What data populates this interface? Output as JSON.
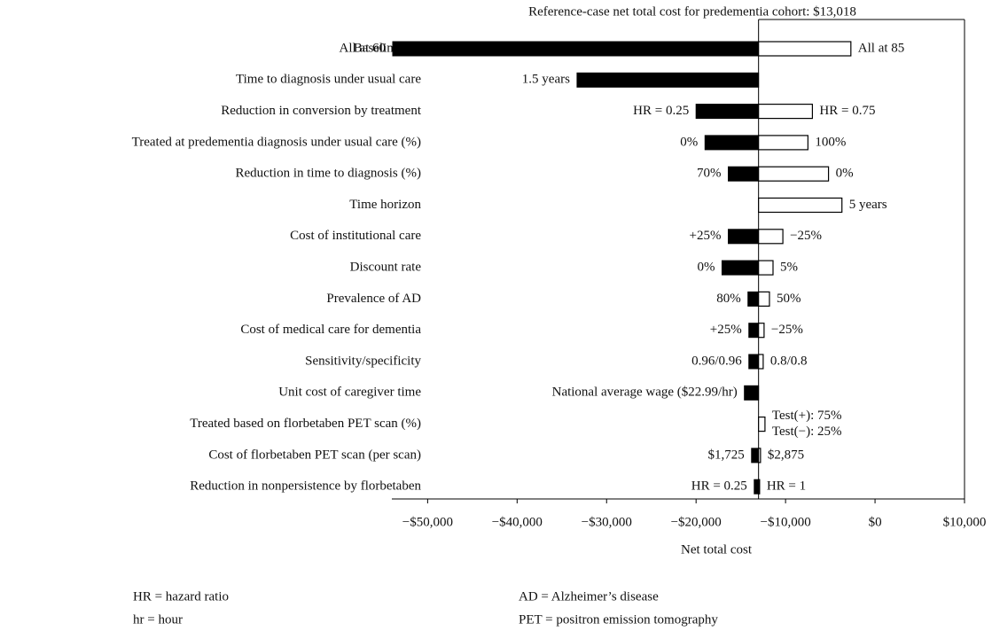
{
  "chart_data": {
    "type": "tornado",
    "title": "Reference-case net total cost for predementia cohort: $13,018",
    "reference": -13018,
    "x_label": "Net total cost",
    "xlim": [
      -54000,
      10000
    ],
    "xticks": [
      {
        "value": -50000,
        "label": "−$50,000"
      },
      {
        "value": -40000,
        "label": "−$40,000"
      },
      {
        "value": -30000,
        "label": "−$30,000"
      },
      {
        "value": -20000,
        "label": "−$20,000"
      },
      {
        "value": -10000,
        "label": "−$10,000"
      },
      {
        "value": 0,
        "label": "$0"
      },
      {
        "value": 10000,
        "label": "$10,000"
      }
    ],
    "low_color": "#000000",
    "high_color": "#ffffff",
    "parameters": [
      {
        "name": "Baseline age",
        "low": -53900,
        "high": -2700,
        "low_label": "All at 60",
        "high_label": "All at 85"
      },
      {
        "name": "Time to diagnosis under usual care",
        "low": -33300,
        "high": null,
        "low_label": "1.5 years",
        "high_label": null
      },
      {
        "name": "Reduction in conversion by treatment",
        "low": -20000,
        "high": -7000,
        "low_label": "HR = 0.25",
        "high_label": "HR = 0.75"
      },
      {
        "name": "Treated at predementia diagnosis under usual care (%)",
        "low": -19000,
        "high": -7500,
        "low_label": "0%",
        "high_label": "100%"
      },
      {
        "name": "Reduction in time to diagnosis (%)",
        "low": -16400,
        "high": -5200,
        "low_label": "70%",
        "high_label": "0%"
      },
      {
        "name": "Time horizon",
        "low": null,
        "high": -3700,
        "low_label": null,
        "high_label": "5 years"
      },
      {
        "name": "Cost of institutional care",
        "low": -16400,
        "high": -10300,
        "low_label": "+25%",
        "high_label": "−25%"
      },
      {
        "name": "Discount rate",
        "low": -17100,
        "high": -11400,
        "low_label": "0%",
        "high_label": "5%"
      },
      {
        "name": "Prevalence of AD",
        "low": -14200,
        "high": -11800,
        "low_label": "80%",
        "high_label": "50%"
      },
      {
        "name": "Cost of medical care for dementia",
        "low": -14100,
        "high": -12400,
        "low_label": "+25%",
        "high_label": "−25%"
      },
      {
        "name": "Sensitivity/specificity",
        "low": -14100,
        "high": -12500,
        "low_label": "0.96/0.96",
        "high_label": "0.8/0.8"
      },
      {
        "name": "Unit cost of caregiver time",
        "low": -14600,
        "high": null,
        "low_label": "National average wage ($22.99/hr)",
        "high_label": null
      },
      {
        "name": "Treated based on florbetaben PET scan (%)",
        "low": null,
        "high": -12300,
        "low_label": null,
        "high_label": [
          "Test(+): 75%",
          "Test(−): 25%"
        ]
      },
      {
        "name": "Cost of florbetaben PET scan (per scan)",
        "low": -13800,
        "high": -12800,
        "low_label": "$1,725",
        "high_label": "$2,875"
      },
      {
        "name": "Reduction in nonpersistence by florbetaben",
        "low": -13500,
        "high": -12900,
        "low_label": "HR = 0.25",
        "high_label": "HR = 1"
      }
    ],
    "notes": [
      "HR = hazard ratio",
      "hr = hour",
      "AD = Alzheimer’s disease",
      "PET = positron emission tomography"
    ]
  }
}
